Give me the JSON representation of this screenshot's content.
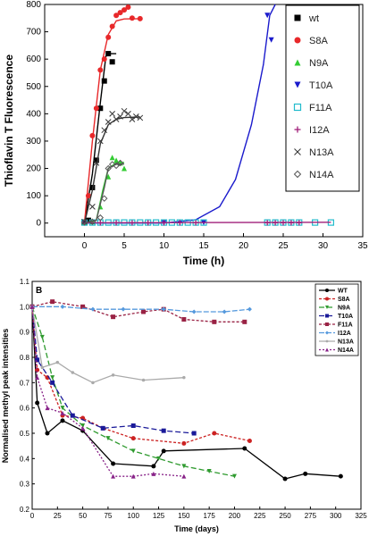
{
  "chart_data": [
    {
      "type": "scatter",
      "xlabel": "Time (h)",
      "ylabel": "Thioflavin T Fluorescence",
      "xlim": [
        -5,
        35
      ],
      "ylim": [
        -50,
        800
      ],
      "xticks": [
        0,
        5,
        10,
        15,
        20,
        25,
        30,
        35
      ],
      "yticks": [
        0,
        100,
        200,
        300,
        400,
        500,
        600,
        700,
        800
      ],
      "xtick_labels": [
        "0",
        "5",
        "10",
        "15",
        "20",
        "25",
        "30",
        "35"
      ],
      "ytick_labels": [
        "0",
        "100",
        "200",
        "300",
        "400",
        "500",
        "600",
        "700",
        "800"
      ],
      "legend_position": "top-right",
      "series": [
        {
          "name": "wt",
          "color": "#000000",
          "marker": "square",
          "points": [
            [
              0,
              2
            ],
            [
              0.5,
              10
            ],
            [
              1,
              130
            ],
            [
              1.5,
              230
            ],
            [
              2,
              420
            ],
            [
              2.5,
              520
            ],
            [
              3,
              620
            ],
            [
              3.5,
              590
            ]
          ],
          "fit": [
            [
              0,
              0
            ],
            [
              1,
              180
            ],
            [
              2,
              440
            ],
            [
              2.7,
              610
            ],
            [
              3,
              620
            ],
            [
              4,
              620
            ]
          ]
        },
        {
          "name": "S8A",
          "color": "#e8282a",
          "marker": "circle",
          "points": [
            [
              0,
              5
            ],
            [
              0.5,
              100
            ],
            [
              1,
              320
            ],
            [
              1.5,
              420
            ],
            [
              2,
              560
            ],
            [
              2.5,
              600
            ],
            [
              3,
              680
            ],
            [
              3.5,
              720
            ],
            [
              4,
              760
            ],
            [
              4.5,
              770
            ],
            [
              5,
              780
            ],
            [
              5.5,
              790
            ],
            [
              6,
              750
            ],
            [
              7,
              748
            ]
          ],
          "fit": [
            [
              0,
              0
            ],
            [
              1,
              300
            ],
            [
              2,
              560
            ],
            [
              3,
              690
            ],
            [
              4,
              740
            ],
            [
              5,
              747
            ],
            [
              7,
              748
            ]
          ]
        },
        {
          "name": "N9A",
          "color": "#33cc33",
          "marker": "triangle-up",
          "points": [
            [
              0,
              2
            ],
            [
              1,
              5
            ],
            [
              2,
              60
            ],
            [
              3,
              170
            ],
            [
              3.5,
              240
            ],
            [
              4,
              230
            ],
            [
              4.5,
              220
            ],
            [
              5,
              200
            ]
          ],
          "fit": [
            [
              0,
              0
            ],
            [
              1.5,
              10
            ],
            [
              2.3,
              120
            ],
            [
              3,
              200
            ],
            [
              4,
              220
            ],
            [
              5,
              222
            ]
          ]
        },
        {
          "name": "T10A",
          "color": "#1a1acc",
          "marker": "triangle-down",
          "points": [
            [
              0,
              2
            ],
            [
              10,
              2
            ],
            [
              15,
              2
            ],
            [
              23,
              760
            ],
            [
              23.5,
              670
            ]
          ],
          "fit": [
            [
              0,
              0
            ],
            [
              10,
              0
            ],
            [
              14,
              12
            ],
            [
              17,
              60
            ],
            [
              19,
              160
            ],
            [
              21,
              360
            ],
            [
              22.5,
              580
            ],
            [
              23.3,
              760
            ],
            [
              24,
              800
            ]
          ]
        },
        {
          "name": "F11A",
          "color": "#22bbcc",
          "marker": "square-open",
          "points": [
            [
              0,
              2
            ],
            [
              1,
              2
            ],
            [
              2,
              2
            ],
            [
              3,
              2
            ],
            [
              4,
              2
            ],
            [
              5,
              2
            ],
            [
              6,
              2
            ],
            [
              7,
              2
            ],
            [
              8,
              2
            ],
            [
              9,
              2
            ],
            [
              10,
              2
            ],
            [
              11,
              2
            ],
            [
              12,
              2
            ],
            [
              13,
              2
            ],
            [
              14,
              2
            ],
            [
              15,
              2
            ],
            [
              23,
              2
            ],
            [
              24,
              2
            ],
            [
              25,
              2
            ],
            [
              26,
              2
            ],
            [
              27,
              2
            ],
            [
              29,
              2
            ],
            [
              31,
              2
            ]
          ],
          "fit": []
        },
        {
          "name": "I12A",
          "color": "#a0207a",
          "marker": "plus",
          "points": [
            [
              0,
              1
            ],
            [
              2,
              1
            ],
            [
              4,
              1
            ],
            [
              6,
              1
            ],
            [
              8,
              1
            ],
            [
              10,
              1
            ],
            [
              12,
              1
            ],
            [
              14,
              1
            ],
            [
              23,
              1
            ],
            [
              24,
              1
            ],
            [
              25,
              1
            ],
            [
              26,
              1
            ],
            [
              27,
              1
            ]
          ],
          "fit": [
            [
              0,
              1
            ],
            [
              31,
              3
            ]
          ]
        },
        {
          "name": "N13A",
          "color": "#333333",
          "marker": "x",
          "points": [
            [
              0,
              5
            ],
            [
              1,
              60
            ],
            [
              1.5,
              220
            ],
            [
              2,
              300
            ],
            [
              2.5,
              340
            ],
            [
              3,
              370
            ],
            [
              3.5,
              400
            ],
            [
              4,
              380
            ],
            [
              4.5,
              390
            ],
            [
              5,
              410
            ],
            [
              5.5,
              400
            ],
            [
              6,
              380
            ],
            [
              6.5,
              390
            ],
            [
              7,
              385
            ]
          ],
          "fit": [
            [
              0,
              0
            ],
            [
              1,
              120
            ],
            [
              2,
              290
            ],
            [
              3,
              360
            ],
            [
              4,
              380
            ],
            [
              5,
              386
            ],
            [
              7,
              388
            ]
          ]
        },
        {
          "name": "N14A",
          "color": "#555555",
          "marker": "diamond-open",
          "points": [
            [
              0,
              3
            ],
            [
              1,
              5
            ],
            [
              2,
              20
            ],
            [
              2.5,
              90
            ],
            [
              3,
              200
            ],
            [
              3.5,
              215
            ],
            [
              4,
              210
            ],
            [
              4.5,
              220
            ]
          ],
          "fit": [
            [
              0,
              0
            ],
            [
              1.5,
              10
            ],
            [
              2.5,
              130
            ],
            [
              3,
              200
            ],
            [
              4,
              215
            ],
            [
              5,
              216
            ]
          ]
        }
      ]
    },
    {
      "type": "line",
      "panel_label": "B",
      "xlabel": "Time (days)",
      "ylabel": "Normalised methyl peak intensities",
      "xlim": [
        0,
        325
      ],
      "ylim": [
        0.2,
        1.1
      ],
      "xticks": [
        0,
        25,
        50,
        75,
        100,
        125,
        150,
        175,
        200,
        225,
        250,
        275,
        300,
        325
      ],
      "yticks": [
        0.2,
        0.3,
        0.4,
        0.5,
        0.6,
        0.7,
        0.8,
        0.9,
        1.0,
        1.1
      ],
      "xtick_labels": [
        "0",
        "25",
        "50",
        "75",
        "100",
        "125",
        "150",
        "175",
        "200",
        "225",
        "250",
        "275",
        "300",
        "325"
      ],
      "ytick_labels": [
        "0.2",
        "0.3",
        "0.4",
        "0.5",
        "0.6",
        "0.7",
        "0.8",
        "0.9",
        "1.0",
        "1.1"
      ],
      "legend_position": "top-right",
      "series": [
        {
          "name": "WT",
          "color": "#000000",
          "marker": "circle",
          "dash": "",
          "x": [
            0,
            5,
            15,
            30,
            50,
            80,
            120,
            130,
            210,
            250,
            270,
            305
          ],
          "y": [
            1.0,
            0.62,
            0.5,
            0.55,
            0.51,
            0.38,
            0.37,
            0.43,
            0.44,
            0.32,
            0.34,
            0.33
          ]
        },
        {
          "name": "S8A",
          "color": "#cc2222",
          "marker": "circle",
          "dash": "3,2",
          "x": [
            0,
            5,
            15,
            30,
            50,
            70,
            100,
            150,
            180,
            215
          ],
          "y": [
            1.0,
            0.75,
            0.72,
            0.57,
            0.56,
            0.52,
            0.48,
            0.46,
            0.5,
            0.47
          ]
        },
        {
          "name": "N9A",
          "color": "#2e9a2e",
          "marker": "triangle-down",
          "dash": "6,3",
          "x": [
            0,
            10,
            20,
            30,
            50,
            75,
            100,
            125,
            150,
            175,
            200
          ],
          "y": [
            1.0,
            0.88,
            0.72,
            0.6,
            0.53,
            0.48,
            0.43,
            0.4,
            0.37,
            0.35,
            0.33
          ]
        },
        {
          "name": "T10A",
          "color": "#1a1a99",
          "marker": "square",
          "dash": "6,3",
          "x": [
            0,
            5,
            20,
            40,
            70,
            100,
            130,
            160
          ],
          "y": [
            1.0,
            0.79,
            0.7,
            0.57,
            0.52,
            0.53,
            0.51,
            0.5
          ]
        },
        {
          "name": "F11A",
          "color": "#992244",
          "marker": "square",
          "dash": "3,2",
          "x": [
            0,
            20,
            50,
            80,
            110,
            130,
            150,
            180,
            210
          ],
          "y": [
            1.0,
            1.02,
            1.0,
            0.96,
            0.98,
            0.99,
            0.95,
            0.94,
            0.94
          ]
        },
        {
          "name": "I12A",
          "color": "#5599dd",
          "marker": "diamond",
          "dash": "6,2",
          "x": [
            0,
            30,
            60,
            90,
            130,
            160,
            190,
            215
          ],
          "y": [
            1.0,
            1.0,
            0.99,
            0.99,
            0.99,
            0.98,
            0.98,
            0.99
          ]
        },
        {
          "name": "N13A",
          "color": "#aaaaaa",
          "marker": "circle-small",
          "dash": "",
          "x": [
            0,
            10,
            25,
            40,
            60,
            80,
            110,
            150
          ],
          "y": [
            1.0,
            0.76,
            0.78,
            0.74,
            0.7,
            0.73,
            0.71,
            0.72
          ]
        },
        {
          "name": "N14A",
          "color": "#882288",
          "marker": "triangle-up",
          "dash": "2,2",
          "x": [
            0,
            5,
            15,
            30,
            50,
            80,
            100,
            120,
            150
          ],
          "y": [
            1.0,
            0.72,
            0.6,
            0.58,
            0.52,
            0.33,
            0.33,
            0.34,
            0.33
          ]
        }
      ]
    }
  ]
}
